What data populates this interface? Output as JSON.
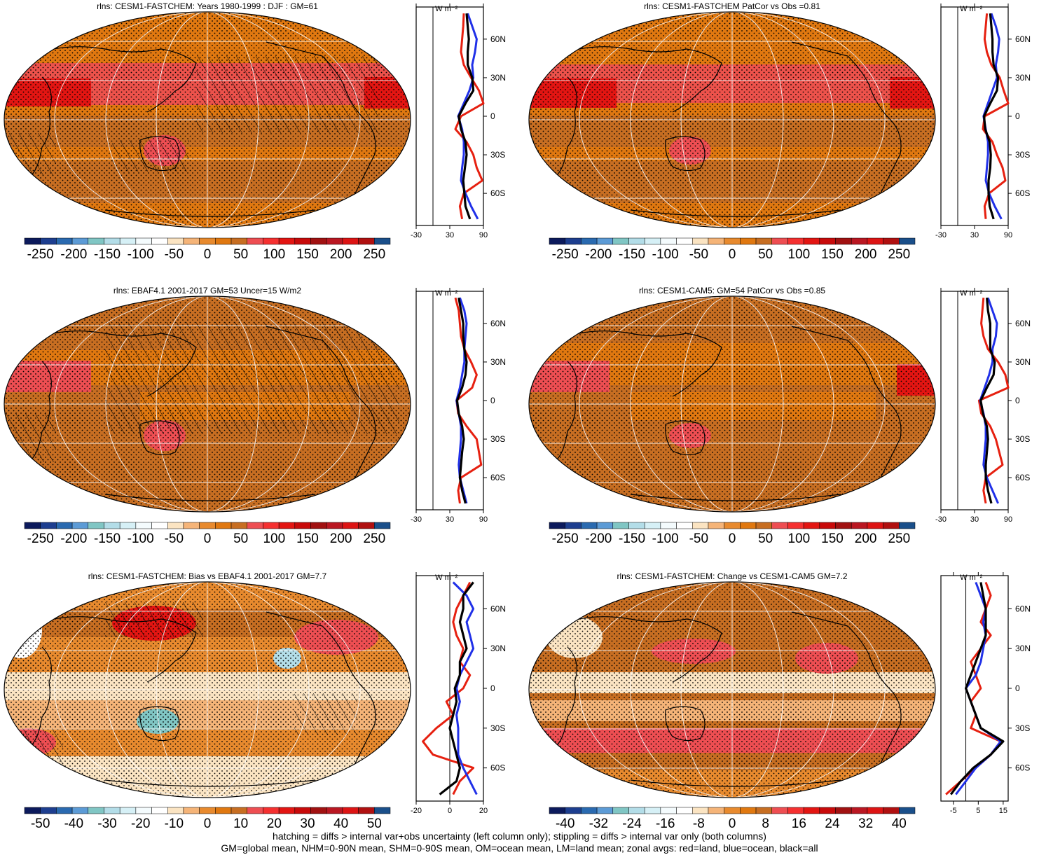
{
  "figure": {
    "variable": "rlns",
    "units_label": "W m⁻²",
    "footer_lines": [
      "hatching = diffs > internal var+obs uncertainty (left column only); stippling = diffs > internal var only (both columns)",
      "GM=global mean, NHM=0-90N mean, SHM=0-90S mean, OM=ocean mean, LM=land mean; zonal avgs: red=land, blue=ocean, black=all"
    ],
    "palette": [
      "#0c1a5c",
      "#1d3e8f",
      "#2a6ab0",
      "#5c9bd6",
      "#80c6c4",
      "#b3dde8",
      "#d6f0f6",
      "#f4fbfd",
      "#ffffff",
      "#fbe4c2",
      "#f5b478",
      "#e88a2e",
      "#e07810",
      "#c76e22",
      "#ee4e52",
      "#f53030",
      "#e31512",
      "#c80a0a",
      "#a11111",
      "#ba1722",
      "#dd1414",
      "#b01010",
      "#1a4f8a"
    ],
    "colors": {
      "land": "#e62010",
      "ocean": "#2030e8",
      "all": "#000000"
    }
  },
  "chart_data": [
    {
      "id": "p1",
      "type": "heatmap",
      "title": "rlns: CESM1-FASTCHEM: Years 1980-1999 : DJF : GM=61",
      "colorbar_labels": [
        "-250",
        "-200",
        "-150",
        "-100",
        "-50",
        "0",
        "50",
        "100",
        "150",
        "200",
        "250"
      ],
      "zonal_xticks": [
        "-30",
        "30",
        "90"
      ],
      "zonal_xrange": [
        -30,
        90
      ],
      "lat_labels": [
        "60N",
        "30N",
        "0",
        "30S",
        "60S"
      ],
      "lat_values": [
        60,
        30,
        0,
        -30,
        -60
      ],
      "hatching": true,
      "zonal_series": [
        {
          "name": "land",
          "lat": [
            80,
            70,
            60,
            50,
            40,
            30,
            20,
            10,
            0,
            -10,
            -20,
            -30,
            -40,
            -50,
            -60,
            -70,
            -80
          ],
          "values": [
            55,
            54,
            52,
            50,
            55,
            68,
            82,
            95,
            50,
            40,
            60,
            72,
            78,
            88,
            55,
            48,
            52
          ]
        },
        {
          "name": "ocean",
          "lat": [
            80,
            70,
            60,
            50,
            40,
            30,
            20,
            10,
            0,
            -10,
            -20,
            -30,
            -40,
            -50,
            -60,
            -70,
            -80
          ],
          "values": [
            62,
            70,
            78,
            75,
            70,
            72,
            65,
            55,
            45,
            52,
            55,
            55,
            52,
            50,
            58,
            68,
            80
          ]
        },
        {
          "name": "all",
          "lat": [
            80,
            70,
            60,
            50,
            40,
            30,
            20,
            10,
            0,
            -10,
            -20,
            -30,
            -40,
            -50,
            -60,
            -70,
            -80
          ],
          "values": [
            60,
            62,
            64,
            62,
            62,
            70,
            72,
            58,
            46,
            50,
            58,
            60,
            57,
            54,
            56,
            58,
            66
          ]
        }
      ]
    },
    {
      "id": "p2",
      "type": "heatmap",
      "title": "rlns: CESM1-FASTCHEM PatCor vs Obs =0.81",
      "colorbar_labels": [
        "-250",
        "-200",
        "-150",
        "-100",
        "-50",
        "0",
        "50",
        "100",
        "150",
        "200",
        "250"
      ],
      "zonal_xticks": [
        "-30",
        "30",
        "90"
      ],
      "zonal_xrange": [
        -30,
        90
      ],
      "lat_labels": [
        "60N",
        "30N",
        "0",
        "30S",
        "60S"
      ],
      "lat_values": [
        60,
        30,
        0,
        -30,
        -60
      ],
      "hatching": false,
      "zonal_series": [
        {
          "name": "land",
          "lat": [
            80,
            70,
            60,
            50,
            40,
            30,
            20,
            10,
            0,
            -10,
            -20,
            -30,
            -40,
            -50,
            -60,
            -70,
            -80
          ],
          "values": [
            52,
            50,
            48,
            52,
            60,
            75,
            82,
            92,
            48,
            45,
            62,
            70,
            80,
            85,
            56,
            48,
            50
          ]
        },
        {
          "name": "ocean",
          "lat": [
            80,
            70,
            60,
            50,
            40,
            30,
            20,
            10,
            0,
            -10,
            -20,
            -30,
            -40,
            -50,
            -60,
            -70,
            -80
          ],
          "values": [
            60,
            68,
            74,
            72,
            68,
            70,
            62,
            54,
            46,
            50,
            54,
            54,
            52,
            50,
            56,
            66,
            78
          ]
        },
        {
          "name": "all",
          "lat": [
            80,
            70,
            60,
            50,
            40,
            30,
            20,
            10,
            0,
            -10,
            -20,
            -30,
            -40,
            -50,
            -60,
            -70,
            -80
          ],
          "values": [
            58,
            60,
            62,
            62,
            64,
            72,
            70,
            58,
            47,
            49,
            57,
            59,
            58,
            55,
            55,
            57,
            64
          ]
        }
      ]
    },
    {
      "id": "p3",
      "type": "heatmap",
      "title": "rlns: EBAF4.1 2001-2017 GM=53 Uncer=15 W/m2",
      "colorbar_labels": [
        "-250",
        "-200",
        "-150",
        "-100",
        "-50",
        "0",
        "50",
        "100",
        "150",
        "200",
        "250"
      ],
      "zonal_xticks": [
        "-30",
        "30",
        "90"
      ],
      "zonal_xrange": [
        -30,
        90
      ],
      "lat_labels": [
        "60N",
        "30N",
        "0",
        "30S",
        "60S"
      ],
      "lat_values": [
        60,
        30,
        0,
        -30,
        -60
      ],
      "hatching": true,
      "zonal_series": [
        {
          "name": "land",
          "lat": [
            80,
            70,
            60,
            50,
            40,
            30,
            20,
            10,
            0,
            -10,
            -20,
            -30,
            -40,
            -50,
            -60,
            -70,
            -80
          ],
          "values": [
            40,
            46,
            48,
            50,
            56,
            68,
            78,
            70,
            42,
            45,
            60,
            78,
            82,
            86,
            50,
            45,
            48
          ]
        },
        {
          "name": "ocean",
          "lat": [
            80,
            70,
            60,
            50,
            40,
            30,
            20,
            10,
            0,
            -10,
            -20,
            -30,
            -40,
            -50,
            -60,
            -70,
            -80
          ],
          "values": [
            48,
            56,
            60,
            58,
            56,
            56,
            52,
            48,
            42,
            46,
            50,
            50,
            48,
            46,
            48,
            54,
            60
          ]
        },
        {
          "name": "all",
          "lat": [
            80,
            70,
            60,
            50,
            40,
            30,
            20,
            10,
            0,
            -10,
            -20,
            -30,
            -40,
            -50,
            -60,
            -70,
            -80
          ],
          "values": [
            46,
            50,
            54,
            54,
            56,
            60,
            58,
            52,
            43,
            46,
            52,
            55,
            52,
            50,
            48,
            52,
            58
          ]
        }
      ]
    },
    {
      "id": "p4",
      "type": "heatmap",
      "title": "rlns: CESM1-CAM5: GM=54 PatCor vs Obs =0.85",
      "colorbar_labels": [
        "-250",
        "-200",
        "-150",
        "-100",
        "-50",
        "0",
        "50",
        "100",
        "150",
        "200",
        "250"
      ],
      "zonal_xticks": [
        "-30",
        "30",
        "90"
      ],
      "zonal_xrange": [
        -30,
        90
      ],
      "lat_labels": [
        "60N",
        "30N",
        "0",
        "30S",
        "60S"
      ],
      "lat_values": [
        60,
        30,
        0,
        -30,
        -60
      ],
      "hatching": false,
      "zonal_series": [
        {
          "name": "land",
          "lat": [
            80,
            70,
            60,
            50,
            40,
            30,
            20,
            10,
            0,
            -10,
            -20,
            -30,
            -40,
            -50,
            -60,
            -70,
            -80
          ],
          "values": [
            46,
            44,
            42,
            46,
            54,
            72,
            85,
            92,
            38,
            42,
            58,
            68,
            74,
            80,
            50,
            46,
            50
          ]
        },
        {
          "name": "ocean",
          "lat": [
            80,
            70,
            60,
            50,
            40,
            30,
            20,
            10,
            0,
            -10,
            -20,
            -30,
            -40,
            -50,
            -60,
            -70,
            -80
          ],
          "values": [
            54,
            62,
            70,
            68,
            62,
            62,
            56,
            48,
            40,
            46,
            50,
            50,
            48,
            46,
            52,
            62,
            72
          ]
        },
        {
          "name": "all",
          "lat": [
            80,
            70,
            60,
            50,
            40,
            30,
            20,
            10,
            0,
            -10,
            -20,
            -30,
            -40,
            -50,
            -60,
            -70,
            -80
          ],
          "values": [
            52,
            54,
            58,
            58,
            58,
            66,
            64,
            52,
            41,
            45,
            52,
            54,
            52,
            50,
            50,
            54,
            60
          ]
        }
      ]
    },
    {
      "id": "p5",
      "type": "heatmap",
      "title": "rlns: CESM1-FASTCHEM: Bias vs EBAF4.1 2001-2017 GM=7.7",
      "colorbar_labels": [
        "-50",
        "-40",
        "-30",
        "-20",
        "-10",
        "0",
        "10",
        "20",
        "30",
        "40",
        "50"
      ],
      "zonal_xticks": [
        "-20",
        "0",
        "20"
      ],
      "zonal_xrange": [
        -20,
        20
      ],
      "lat_labels": [
        "60N",
        "30N",
        "0",
        "30S",
        "60S"
      ],
      "lat_values": [
        60,
        30,
        0,
        -30,
        -60
      ],
      "hatching": true,
      "zonal_series": [
        {
          "name": "land",
          "lat": [
            80,
            70,
            60,
            50,
            40,
            30,
            20,
            10,
            0,
            -10,
            -20,
            -30,
            -40,
            -50,
            -60,
            -70,
            -80
          ],
          "values": [
            12,
            8,
            4,
            2,
            4,
            8,
            6,
            12,
            8,
            -2,
            2,
            -8,
            -16,
            -10,
            14,
            6,
            2
          ]
        },
        {
          "name": "ocean",
          "lat": [
            80,
            70,
            60,
            50,
            40,
            30,
            20,
            10,
            0,
            -10,
            -20,
            -30,
            -40,
            -50,
            -60,
            -70,
            -80
          ],
          "values": [
            2,
            10,
            14,
            10,
            12,
            14,
            10,
            6,
            4,
            6,
            4,
            5,
            5,
            5,
            8,
            12,
            16
          ]
        },
        {
          "name": "all",
          "lat": [
            80,
            70,
            60,
            50,
            40,
            30,
            20,
            10,
            0,
            -10,
            -20,
            -30,
            -40,
            -50,
            -60,
            -70,
            -80
          ],
          "values": [
            14,
            8,
            8,
            6,
            8,
            10,
            6,
            6,
            3,
            4,
            2,
            0,
            2,
            4,
            6,
            4,
            -6
          ]
        }
      ]
    },
    {
      "id": "p6",
      "type": "heatmap",
      "title": "rlns: CESM1-FASTCHEM: Change vs CESM1-CAM5 GM=7.2",
      "colorbar_labels": [
        "-40",
        "-32",
        "-24",
        "-16",
        "-8",
        "0",
        "8",
        "16",
        "24",
        "32",
        "40"
      ],
      "zonal_xticks": [
        "-5",
        "5",
        "15"
      ],
      "zonal_xrange": [
        -10,
        17
      ],
      "lat_labels": [
        "60N",
        "30N",
        "0",
        "30S",
        "60S"
      ],
      "lat_values": [
        60,
        30,
        0,
        -30,
        -60
      ],
      "hatching": false,
      "zonal_series": [
        {
          "name": "land",
          "lat": [
            80,
            70,
            60,
            50,
            40,
            30,
            20,
            10,
            0,
            -10,
            -20,
            -30,
            -40,
            -50,
            -60,
            -70,
            -80
          ],
          "values": [
            8,
            10,
            8,
            6,
            10,
            6,
            2,
            4,
            6,
            2,
            4,
            2,
            14,
            10,
            4,
            -2,
            -8
          ]
        },
        {
          "name": "ocean",
          "lat": [
            80,
            70,
            60,
            50,
            40,
            30,
            20,
            10,
            0,
            -10,
            -20,
            -30,
            -40,
            -50,
            -60,
            -70,
            -80
          ],
          "values": [
            4,
            6,
            8,
            7,
            8,
            7,
            6,
            4,
            0,
            2,
            4,
            6,
            14,
            10,
            4,
            0,
            -4
          ]
        },
        {
          "name": "all",
          "lat": [
            80,
            70,
            60,
            50,
            40,
            30,
            20,
            10,
            0,
            -10,
            -20,
            -30,
            -40,
            -50,
            -60,
            -70,
            -80
          ],
          "values": [
            6,
            7,
            8,
            8,
            8,
            6,
            4,
            2,
            0,
            2,
            4,
            6,
            15,
            10,
            3,
            -2,
            -6
          ]
        }
      ]
    }
  ]
}
